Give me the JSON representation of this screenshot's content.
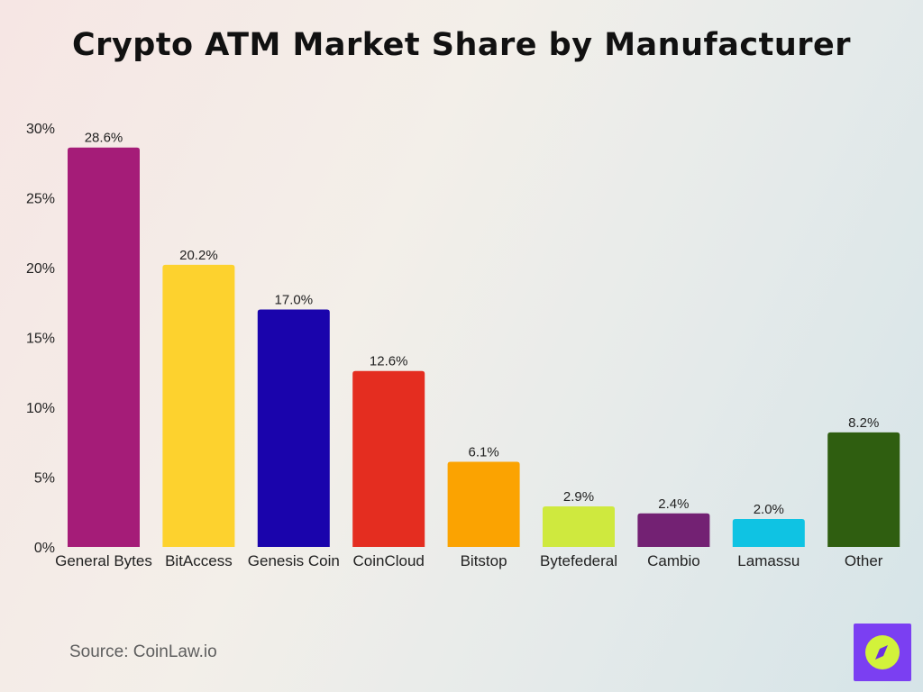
{
  "title": "Crypto ATM Market Share by Manufacturer",
  "source": "Source: CoinLaw.io",
  "chart_data": {
    "type": "bar",
    "title": "Crypto ATM Market Share by Manufacturer",
    "xlabel": "",
    "ylabel": "",
    "ylim": [
      0,
      30
    ],
    "y_ticks": [
      0,
      5,
      10,
      15,
      20,
      25,
      30
    ],
    "y_tick_labels": [
      "0%",
      "5%",
      "10%",
      "15%",
      "20%",
      "25%",
      "30%"
    ],
    "grid": false,
    "categories": [
      "General Bytes",
      "BitAccess",
      "Genesis Coin",
      "CoinCloud",
      "Bitstop",
      "Bytefederal",
      "Cambio",
      "Lamassu",
      "Other"
    ],
    "values": [
      28.6,
      20.2,
      17.0,
      12.6,
      6.1,
      2.9,
      2.4,
      2.0,
      8.2
    ],
    "value_labels": [
      "28.6%",
      "20.2%",
      "17.0%",
      "12.6%",
      "6.1%",
      "2.9%",
      "2.4%",
      "2.0%",
      "8.2%"
    ],
    "colors": [
      "#a51c78",
      "#fdd22e",
      "#1a04ac",
      "#e42d20",
      "#fba301",
      "#cfe93e",
      "#732173",
      "#0fc3e3",
      "#2f5e10"
    ]
  },
  "logo": {
    "icon": "compass-icon",
    "background": "#7b3ff2",
    "ring": "#d2f23a",
    "needle": "#6b2fe0"
  }
}
